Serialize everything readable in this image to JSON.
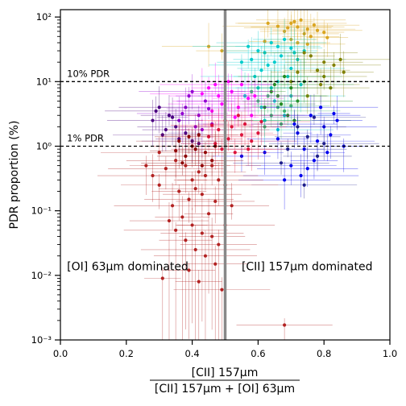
{
  "chart_data": {
    "type": "scatter",
    "xlim": [
      0.0,
      1.0
    ],
    "ylim": [
      0.001,
      130
    ],
    "yscale": "log",
    "grid": false,
    "xlabel_numerator": "[CII] 157μm",
    "xlabel_denominator": "[CII] 157μm + [OI] 63μm",
    "ylabel": "PDR proportion (%)",
    "x_ticks": [
      {
        "value": 0.0,
        "label": "0.0"
      },
      {
        "value": 0.2,
        "label": "0.2"
      },
      {
        "value": 0.4,
        "label": "0.4"
      },
      {
        "value": 0.6,
        "label": "0.6"
      },
      {
        "value": 0.8,
        "label": "0.8"
      },
      {
        "value": 1.0,
        "label": "1.0"
      }
    ],
    "y_ticks": [
      {
        "value": 0.001,
        "label": "10⁻³"
      },
      {
        "value": 0.01,
        "label": "10⁻²"
      },
      {
        "value": 0.1,
        "label": "10⁻¹"
      },
      {
        "value": 1,
        "label": "10⁰"
      },
      {
        "value": 10,
        "label": "10¹"
      },
      {
        "value": 100,
        "label": "10²"
      }
    ],
    "hlines": [
      {
        "y": 10,
        "label": "10% PDR",
        "style": "dashed",
        "color": "#000000"
      },
      {
        "y": 1,
        "label": "1% PDR",
        "style": "dashed",
        "color": "#000000"
      }
    ],
    "vline": {
      "x": 0.5,
      "color": "#888888"
    },
    "annotations": [
      {
        "text": "[OI] 63μm dominated",
        "x": 0.02,
        "y": 0.012
      },
      {
        "text": "[CII] 157μm dominated",
        "x": 0.55,
        "y": 0.012
      }
    ],
    "series": [
      {
        "color": "#daa520",
        "points": [
          [
            0.7,
            80
          ],
          [
            0.72,
            70
          ],
          [
            0.75,
            65
          ],
          [
            0.73,
            90
          ],
          [
            0.68,
            60
          ],
          [
            0.77,
            75
          ],
          [
            0.74,
            55
          ],
          [
            0.71,
            85
          ],
          [
            0.78,
            62
          ],
          [
            0.66,
            72
          ],
          [
            0.76,
            50
          ],
          [
            0.8,
            58
          ],
          [
            0.7,
            45
          ],
          [
            0.45,
            35
          ],
          [
            0.49,
            30
          ],
          [
            0.72,
            40
          ],
          [
            0.62,
            42
          ],
          [
            0.69,
            68
          ],
          [
            0.81,
            48
          ],
          [
            0.63,
            80
          ],
          [
            0.75,
            38
          ]
        ]
      },
      {
        "color": "#00cccc",
        "points": [
          [
            0.64,
            40
          ],
          [
            0.66,
            35
          ],
          [
            0.6,
            30
          ],
          [
            0.68,
            45
          ],
          [
            0.62,
            28
          ],
          [
            0.7,
            33
          ],
          [
            0.58,
            22
          ],
          [
            0.65,
            20
          ],
          [
            0.63,
            18
          ],
          [
            0.67,
            25
          ],
          [
            0.61,
            15
          ],
          [
            0.69,
            12
          ],
          [
            0.72,
            22
          ],
          [
            0.55,
            20
          ],
          [
            0.66,
            10
          ],
          [
            0.64,
            8
          ],
          [
            0.7,
            16
          ],
          [
            0.59,
            12
          ],
          [
            0.74,
            30
          ],
          [
            0.57,
            35
          ],
          [
            0.71,
            28
          ],
          [
            0.6,
            8
          ],
          [
            0.65,
            5
          ],
          [
            0.68,
            3
          ],
          [
            0.62,
            2.5
          ],
          [
            0.66,
            1.8
          ],
          [
            0.7,
            6
          ],
          [
            0.73,
            9
          ],
          [
            0.61,
            4
          ],
          [
            0.56,
            6
          ]
        ]
      },
      {
        "color": "#808000",
        "points": [
          [
            0.76,
            25
          ],
          [
            0.8,
            20
          ],
          [
            0.83,
            18
          ],
          [
            0.78,
            15
          ],
          [
            0.85,
            22
          ],
          [
            0.74,
            28
          ],
          [
            0.8,
            12
          ],
          [
            0.82,
            8
          ],
          [
            0.7,
            10
          ],
          [
            0.75,
            6
          ],
          [
            0.79,
            9
          ],
          [
            0.86,
            14
          ],
          [
            0.72,
            14
          ]
        ]
      },
      {
        "color": "#228b22",
        "points": [
          [
            0.68,
            12
          ],
          [
            0.7,
            8
          ],
          [
            0.66,
            6
          ],
          [
            0.72,
            5
          ],
          [
            0.64,
            7
          ],
          [
            0.74,
            10
          ],
          [
            0.62,
            4
          ],
          [
            0.69,
            3
          ],
          [
            0.71,
            2.5
          ],
          [
            0.65,
            9
          ],
          [
            0.67,
            4.5
          ]
        ]
      },
      {
        "color": "#3cb371",
        "points": [
          [
            0.63,
            6
          ],
          [
            0.66,
            4
          ],
          [
            0.6,
            5
          ],
          [
            0.68,
            3.5
          ],
          [
            0.62,
            2
          ],
          [
            0.64,
            3
          ],
          [
            0.7,
            4.2
          ],
          [
            0.58,
            7
          ],
          [
            0.67,
            2.2
          ]
        ]
      },
      {
        "color": "#ff00ff",
        "points": [
          [
            0.45,
            8
          ],
          [
            0.48,
            6
          ],
          [
            0.5,
            5
          ],
          [
            0.52,
            7
          ],
          [
            0.55,
            9
          ],
          [
            0.54,
            4
          ],
          [
            0.46,
            3.5
          ],
          [
            0.43,
            6.5
          ],
          [
            0.57,
            5.5
          ],
          [
            0.51,
            10
          ],
          [
            0.49,
            4.5
          ],
          [
            0.58,
            3
          ],
          [
            0.53,
            2.8
          ],
          [
            0.47,
            9
          ],
          [
            0.59,
            6
          ]
        ]
      },
      {
        "color": "#9400d3",
        "points": [
          [
            0.4,
            7
          ],
          [
            0.38,
            4
          ],
          [
            0.42,
            3
          ],
          [
            0.36,
            2.5
          ],
          [
            0.44,
            5
          ],
          [
            0.41,
            2
          ],
          [
            0.39,
            6
          ],
          [
            0.46,
            2.2
          ],
          [
            0.43,
            1.8
          ],
          [
            0.37,
            3.2
          ],
          [
            0.45,
            3.8
          ]
        ]
      },
      {
        "color": "#4b0082",
        "points": [
          [
            0.3,
            4
          ],
          [
            0.33,
            3
          ],
          [
            0.35,
            2
          ],
          [
            0.28,
            2.5
          ],
          [
            0.38,
            1.6
          ],
          [
            0.32,
            1.8
          ],
          [
            0.36,
            1.3
          ],
          [
            0.4,
            1.2
          ],
          [
            0.34,
            2.8
          ],
          [
            0.31,
            1.5
          ],
          [
            0.42,
            1.1
          ],
          [
            0.29,
            3.5
          ]
        ]
      },
      {
        "color": "#0000ee",
        "points": [
          [
            0.76,
            3
          ],
          [
            0.8,
            2
          ],
          [
            0.82,
            1.5
          ],
          [
            0.78,
            1.2
          ],
          [
            0.84,
            2.5
          ],
          [
            0.79,
            4
          ],
          [
            0.72,
            1.6
          ],
          [
            0.74,
            0.9
          ],
          [
            0.77,
            0.6
          ],
          [
            0.81,
            0.8
          ],
          [
            0.75,
            0.45
          ],
          [
            0.7,
            0.5
          ],
          [
            0.73,
            0.35
          ],
          [
            0.68,
            0.3
          ],
          [
            0.86,
            1.0
          ],
          [
            0.71,
            2.2
          ],
          [
            0.66,
            1.3
          ],
          [
            0.83,
            3.2
          ],
          [
            0.55,
            0.7
          ],
          [
            0.62,
            0.8
          ]
        ]
      },
      {
        "color": "#1e1e8c",
        "points": [
          [
            0.77,
            2.8
          ],
          [
            0.72,
            2.0
          ],
          [
            0.8,
            1.1
          ],
          [
            0.69,
            0.9
          ],
          [
            0.75,
            1.4
          ],
          [
            0.67,
            0.55
          ],
          [
            0.74,
            0.25
          ],
          [
            0.78,
            0.7
          ]
        ]
      },
      {
        "color": "#dc143c",
        "points": [
          [
            0.52,
            2
          ],
          [
            0.55,
            1.5
          ],
          [
            0.48,
            1.8
          ],
          [
            0.58,
            1.2
          ],
          [
            0.5,
            2.5
          ],
          [
            0.54,
            3
          ],
          [
            0.47,
            1.1
          ],
          [
            0.6,
            1.6
          ],
          [
            0.51,
            1.3
          ],
          [
            0.56,
            2.2
          ],
          [
            0.49,
            0.9
          ],
          [
            0.53,
            0.8
          ],
          [
            0.45,
            1.4
          ],
          [
            0.57,
            0.9
          ],
          [
            0.61,
            2.4
          ],
          [
            0.46,
            2.1
          ]
        ]
      },
      {
        "color": "#8b0000",
        "points": [
          [
            0.42,
            1.5
          ],
          [
            0.4,
            1.0
          ],
          [
            0.44,
            0.8
          ],
          [
            0.38,
            0.7
          ],
          [
            0.36,
            1.2
          ],
          [
            0.46,
            0.6
          ],
          [
            0.43,
            0.5
          ],
          [
            0.41,
            0.9
          ],
          [
            0.39,
            1.4
          ],
          [
            0.35,
            0.85
          ],
          [
            0.47,
            1.0
          ],
          [
            0.37,
            0.55
          ]
        ]
      },
      {
        "color": "#b22222",
        "points": [
          [
            0.35,
            0.6
          ],
          [
            0.38,
            0.5
          ],
          [
            0.42,
            0.4
          ],
          [
            0.32,
            0.45
          ],
          [
            0.4,
            0.3
          ],
          [
            0.44,
            0.35
          ],
          [
            0.3,
            0.25
          ],
          [
            0.46,
            0.5
          ],
          [
            0.48,
            0.3
          ],
          [
            0.36,
            0.2
          ],
          [
            0.41,
            0.22
          ],
          [
            0.39,
            0.15
          ],
          [
            0.34,
            0.12
          ],
          [
            0.43,
            0.18
          ],
          [
            0.47,
            0.14
          ],
          [
            0.5,
            0.25
          ],
          [
            0.37,
            0.08
          ],
          [
            0.33,
            0.07
          ],
          [
            0.45,
            0.09
          ],
          [
            0.4,
            0.06
          ],
          [
            0.35,
            0.05
          ],
          [
            0.43,
            0.045
          ],
          [
            0.38,
            0.035
          ],
          [
            0.46,
            0.04
          ],
          [
            0.48,
            0.03
          ],
          [
            0.41,
            0.025
          ],
          [
            0.44,
            0.02
          ],
          [
            0.47,
            0.015
          ],
          [
            0.39,
            0.012
          ],
          [
            0.31,
            0.009
          ],
          [
            0.42,
            0.008
          ],
          [
            0.49,
            0.006
          ],
          [
            0.68,
            0.0017
          ],
          [
            0.28,
            0.35
          ],
          [
            0.26,
            0.5
          ],
          [
            0.3,
            0.8
          ],
          [
            0.52,
            0.12
          ],
          [
            0.5,
            0.06
          ]
        ]
      }
    ]
  }
}
